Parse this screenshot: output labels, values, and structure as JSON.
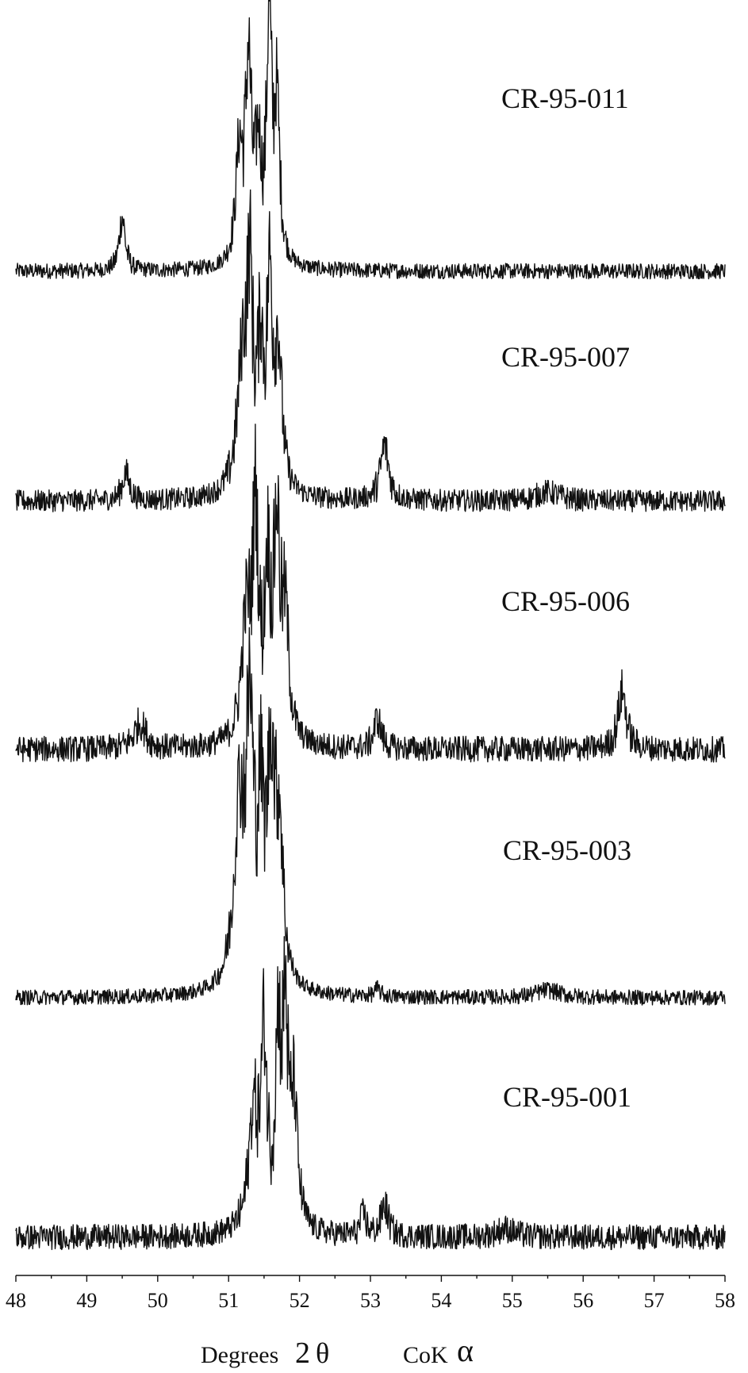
{
  "chart_data": {
    "type": "line",
    "title": "",
    "xlabel": "Degrees 2 θ",
    "xlabel_parts": {
      "text": "Degrees",
      "value": "2",
      "symbol": "θ"
    },
    "radiation_label": {
      "text": "CoK",
      "symbol": "α"
    },
    "ylabel": "",
    "xlim": [
      48,
      58
    ],
    "xticks": [
      48,
      49,
      50,
      51,
      52,
      53,
      54,
      55,
      56,
      57,
      58
    ],
    "grid": false,
    "legend": "none",
    "series": [
      {
        "name": "CR-95-011",
        "baseline": 0.0,
        "noise": 0.04,
        "peaks": [
          {
            "x": 49.5,
            "height": 0.28,
            "width": 0.05
          },
          {
            "x": 51.15,
            "height": 0.55,
            "width": 0.06
          },
          {
            "x": 51.28,
            "height": 1.0,
            "width": 0.05
          },
          {
            "x": 51.42,
            "height": 0.55,
            "width": 0.05
          },
          {
            "x": 51.57,
            "height": 1.2,
            "width": 0.04
          },
          {
            "x": 51.68,
            "height": 0.8,
            "width": 0.05
          }
        ]
      },
      {
        "name": "CR-95-007",
        "baseline": 0.0,
        "noise": 0.06,
        "peaks": [
          {
            "x": 49.55,
            "height": 0.15,
            "width": 0.06
          },
          {
            "x": 51.2,
            "height": 0.7,
            "width": 0.09
          },
          {
            "x": 51.3,
            "height": 1.0,
            "width": 0.05
          },
          {
            "x": 51.45,
            "height": 0.7,
            "width": 0.05
          },
          {
            "x": 51.58,
            "height": 1.05,
            "width": 0.05
          },
          {
            "x": 51.7,
            "height": 0.75,
            "width": 0.06
          },
          {
            "x": 53.2,
            "height": 0.3,
            "width": 0.07
          },
          {
            "x": 55.5,
            "height": 0.05,
            "width": 0.2
          }
        ]
      },
      {
        "name": "CR-95-006",
        "baseline": 0.0,
        "noise": 0.06,
        "peaks": [
          {
            "x": 49.75,
            "height": 0.12,
            "width": 0.1
          },
          {
            "x": 51.25,
            "height": 0.55,
            "width": 0.08
          },
          {
            "x": 51.38,
            "height": 1.0,
            "width": 0.05
          },
          {
            "x": 51.55,
            "height": 0.75,
            "width": 0.05
          },
          {
            "x": 51.68,
            "height": 0.95,
            "width": 0.05
          },
          {
            "x": 51.8,
            "height": 0.55,
            "width": 0.06
          },
          {
            "x": 53.1,
            "height": 0.14,
            "width": 0.06
          },
          {
            "x": 56.55,
            "height": 0.27,
            "width": 0.07
          }
        ]
      },
      {
        "name": "CR-95-003",
        "baseline": 0.0,
        "noise": 0.03,
        "peaks": [
          {
            "x": 51.15,
            "height": 0.7,
            "width": 0.09
          },
          {
            "x": 51.3,
            "height": 1.0,
            "width": 0.06
          },
          {
            "x": 51.45,
            "height": 0.6,
            "width": 0.05
          },
          {
            "x": 51.6,
            "height": 0.88,
            "width": 0.07
          },
          {
            "x": 51.72,
            "height": 0.55,
            "width": 0.06
          },
          {
            "x": 53.1,
            "height": 0.03,
            "width": 0.05
          },
          {
            "x": 55.5,
            "height": 0.03,
            "width": 0.2
          }
        ]
      },
      {
        "name": "CR-95-001",
        "baseline": 0.0,
        "noise": 0.06,
        "peaks": [
          {
            "x": 51.35,
            "height": 0.55,
            "width": 0.08
          },
          {
            "x": 51.5,
            "height": 0.85,
            "width": 0.05
          },
          {
            "x": 51.7,
            "height": 0.9,
            "width": 0.05
          },
          {
            "x": 51.8,
            "height": 0.95,
            "width": 0.04
          },
          {
            "x": 51.92,
            "height": 0.6,
            "width": 0.06
          },
          {
            "x": 52.9,
            "height": 0.1,
            "width": 0.05
          },
          {
            "x": 53.2,
            "height": 0.15,
            "width": 0.06
          },
          {
            "x": 54.9,
            "height": 0.04,
            "width": 0.15
          }
        ]
      }
    ]
  }
}
